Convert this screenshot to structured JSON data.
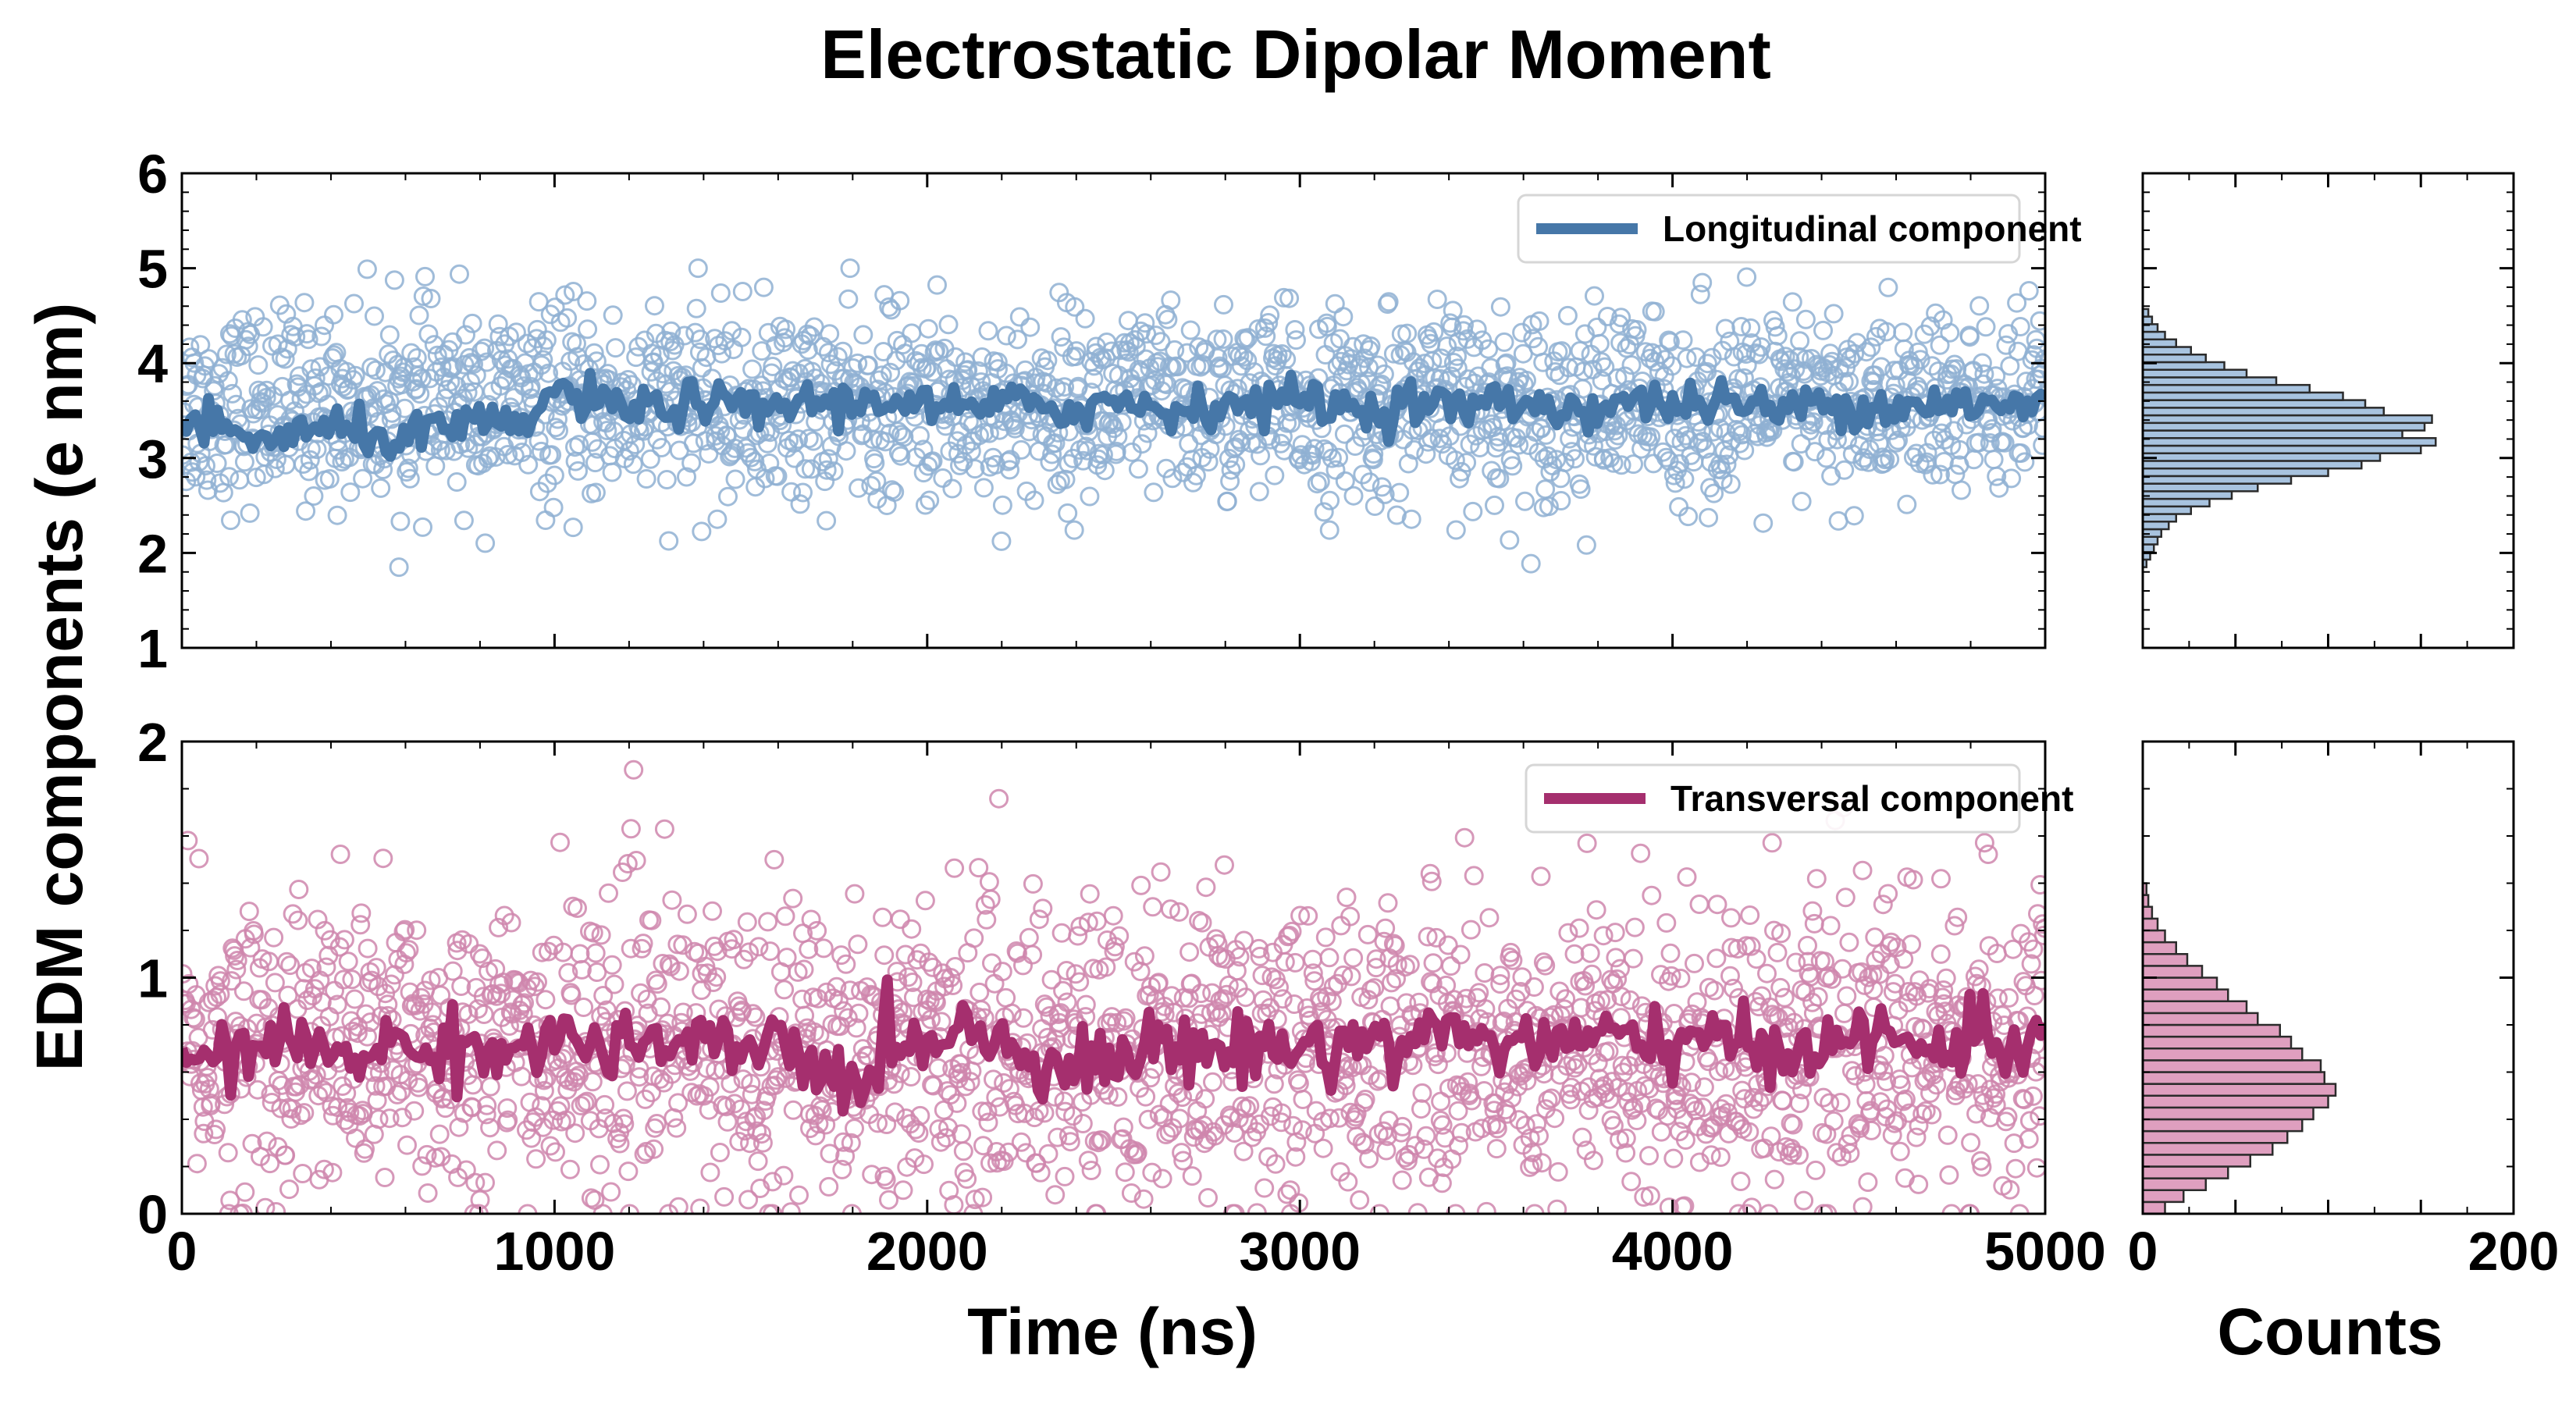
{
  "chart_data": {
    "title": "Electrostatic Dipolar Moment",
    "ylabel": "EDM components (e nm)",
    "colors": {
      "longitudinal": "#4677a8",
      "longitudinal_marker": "#8fb0d2",
      "longitudinal_hist": "#a8c3df",
      "transversal": "#a52f6e",
      "transversal_marker": "#cf86ad",
      "transversal_hist": "#df9fbf"
    },
    "top": {
      "type": "scatter+line",
      "series_name": "Longitudinal component",
      "xlabel": "",
      "xlim": [
        0,
        5000
      ],
      "ylim": [
        1,
        6
      ],
      "xticks": [
        0,
        1000,
        2000,
        3000,
        4000,
        5000
      ],
      "yticks": [
        1,
        2,
        3,
        4,
        5,
        6
      ],
      "mean": 3.55,
      "std": 0.5,
      "min_value": 1.85,
      "max_value": 5.0,
      "n_points": 2000,
      "running_average": [
        3.35,
        3.3,
        3.2,
        3.25,
        3.3,
        3.25,
        3.2,
        3.3,
        3.35,
        3.3,
        3.7,
        3.6,
        3.5,
        3.55,
        3.6,
        3.5,
        3.55,
        3.6,
        3.55,
        3.65,
        3.55,
        3.5,
        3.55,
        3.6,
        3.5,
        3.6,
        3.55,
        3.5,
        3.6,
        3.55,
        3.65,
        3.55,
        3.5,
        3.6,
        3.55,
        3.55,
        3.6,
        3.5,
        3.55,
        3.6,
        3.55,
        3.6,
        3.55,
        3.5,
        3.6,
        3.55,
        3.55,
        3.6,
        3.55,
        3.5,
        3.6
      ]
    },
    "bottom": {
      "type": "scatter+line",
      "series_name": "Transversal component",
      "xlabel": "Time (ns)",
      "xlim": [
        0,
        5000
      ],
      "ylim": [
        0,
        2
      ],
      "xticks": [
        0,
        1000,
        2000,
        3000,
        4000,
        5000
      ],
      "xtick_labels": [
        "0",
        "1000",
        "2000",
        "3000",
        "4000",
        "5000"
      ],
      "yticks": [
        0,
        1,
        2
      ],
      "mean": 0.7,
      "std": 0.32,
      "min_value": 0.0,
      "max_value": 1.88,
      "n_points": 2000,
      "running_average": [
        0.7,
        0.65,
        0.7,
        0.72,
        0.68,
        0.7,
        0.7,
        0.7,
        0.72,
        0.68,
        0.75,
        0.72,
        0.68,
        0.72,
        0.7,
        0.68,
        0.75,
        0.6,
        0.55,
        0.7,
        0.75,
        0.8,
        0.72,
        0.68,
        0.62,
        0.65,
        0.7,
        0.72,
        0.68,
        0.72,
        0.7,
        0.72,
        0.75,
        0.72,
        0.8,
        0.72,
        0.75,
        0.7,
        0.75,
        0.72,
        0.75,
        0.7,
        0.72,
        0.7,
        0.72,
        0.75,
        0.72,
        0.7,
        0.75,
        0.72,
        0.75
      ]
    },
    "hist_top": {
      "type": "bar",
      "orientation": "horizontal",
      "xlabel": "",
      "xlim": [
        0,
        200
      ],
      "bin_edges_start": 1.85,
      "bin_width": 0.08,
      "counts": [
        2,
        4,
        6,
        8,
        10,
        14,
        18,
        26,
        36,
        48,
        62,
        80,
        100,
        118,
        128,
        150,
        158,
        140,
        152,
        156,
        130,
        120,
        108,
        90,
        72,
        56,
        44,
        34,
        26,
        18,
        12,
        8,
        5,
        3
      ]
    },
    "hist_bottom": {
      "type": "bar",
      "orientation": "horizontal",
      "xlabel": "Counts",
      "xlim": [
        0,
        200
      ],
      "xticks": [
        0,
        200
      ],
      "xtick_labels": [
        "0",
        "200"
      ],
      "bin_edges_start": 0.0,
      "bin_width": 0.05,
      "counts": [
        12,
        22,
        34,
        46,
        58,
        70,
        78,
        86,
        92,
        100,
        104,
        98,
        96,
        86,
        80,
        74,
        62,
        56,
        46,
        40,
        32,
        24,
        18,
        12,
        8,
        5,
        3,
        2
      ]
    },
    "legend_placement": "top-right"
  }
}
